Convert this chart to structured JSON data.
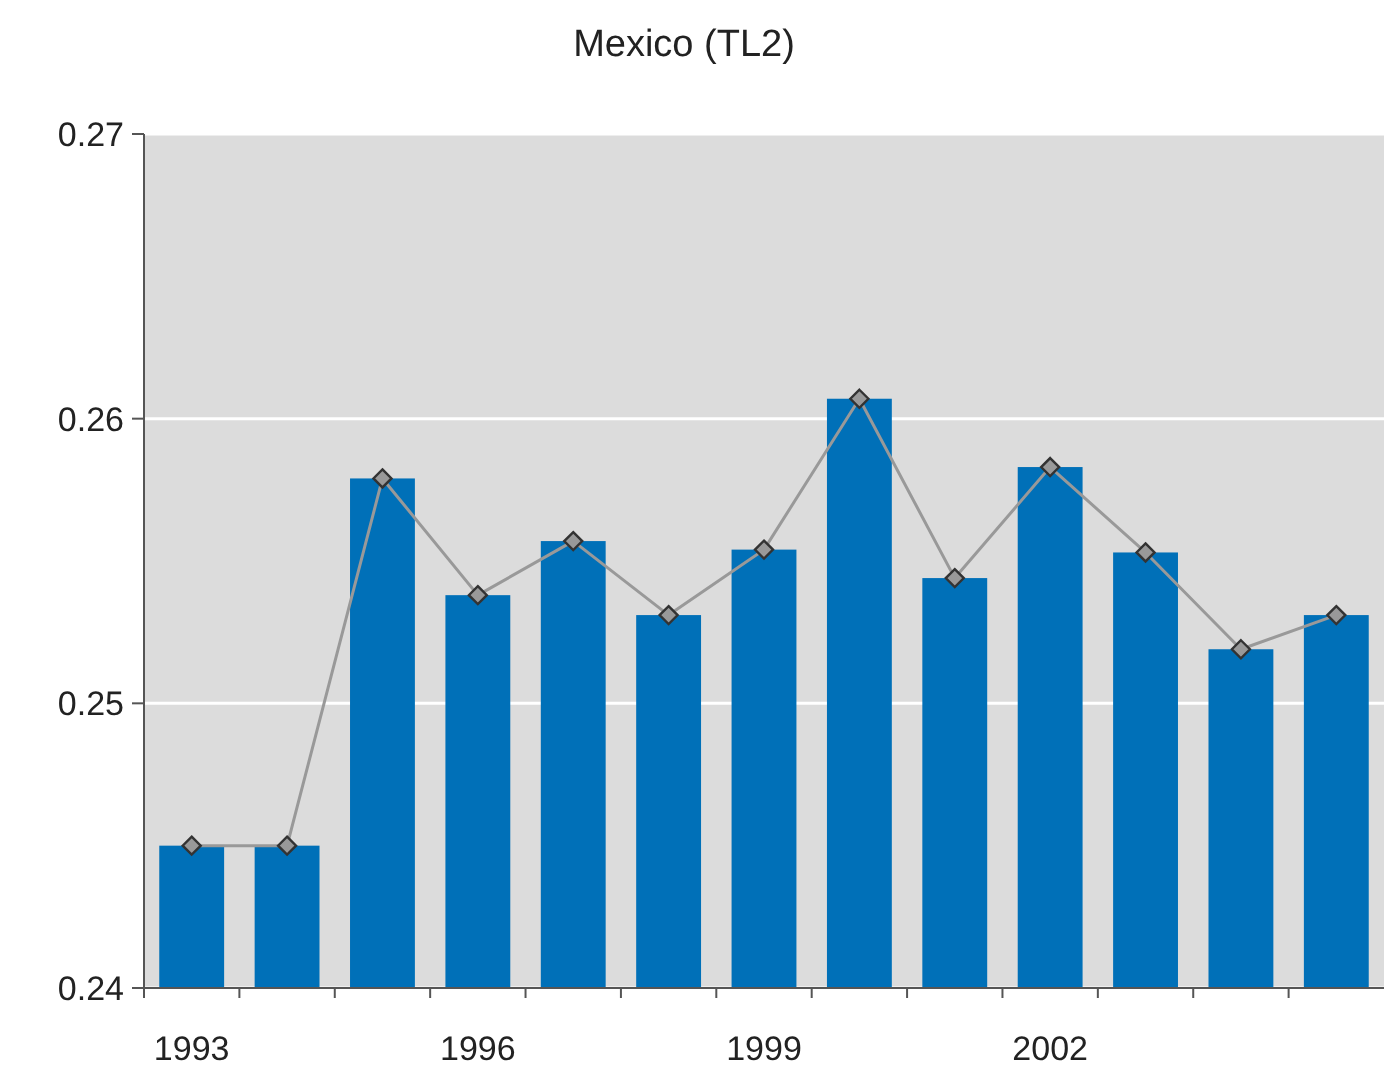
{
  "chart_data": {
    "type": "bar",
    "title": "Mexico (TL2)",
    "categories": [
      "1993",
      null,
      null,
      "1996",
      null,
      null,
      "1999",
      null,
      null,
      "2002",
      null,
      null,
      null
    ],
    "series": [
      {
        "color": "#0070b8",
        "values": [
          0.245,
          0.245,
          0.2579,
          0.2538,
          0.2557,
          0.2531,
          0.2554,
          0.2607,
          0.2544,
          0.2583,
          0.2553,
          0.2519,
          0.2531
        ]
      },
      {
        "type": "line",
        "color": "#999999",
        "values": [
          0.245,
          0.245,
          0.2579,
          0.2538,
          0.2557,
          0.2531,
          0.2554,
          0.2607,
          0.2544,
          0.2583,
          0.2553,
          0.2519,
          0.2531
        ]
      }
    ],
    "ylim": [
      0.24,
      0.27
    ],
    "yticks": [
      0.24,
      0.25,
      0.26,
      0.27
    ],
    "grid": "y",
    "marker": "diamond",
    "line_style": "solid"
  }
}
